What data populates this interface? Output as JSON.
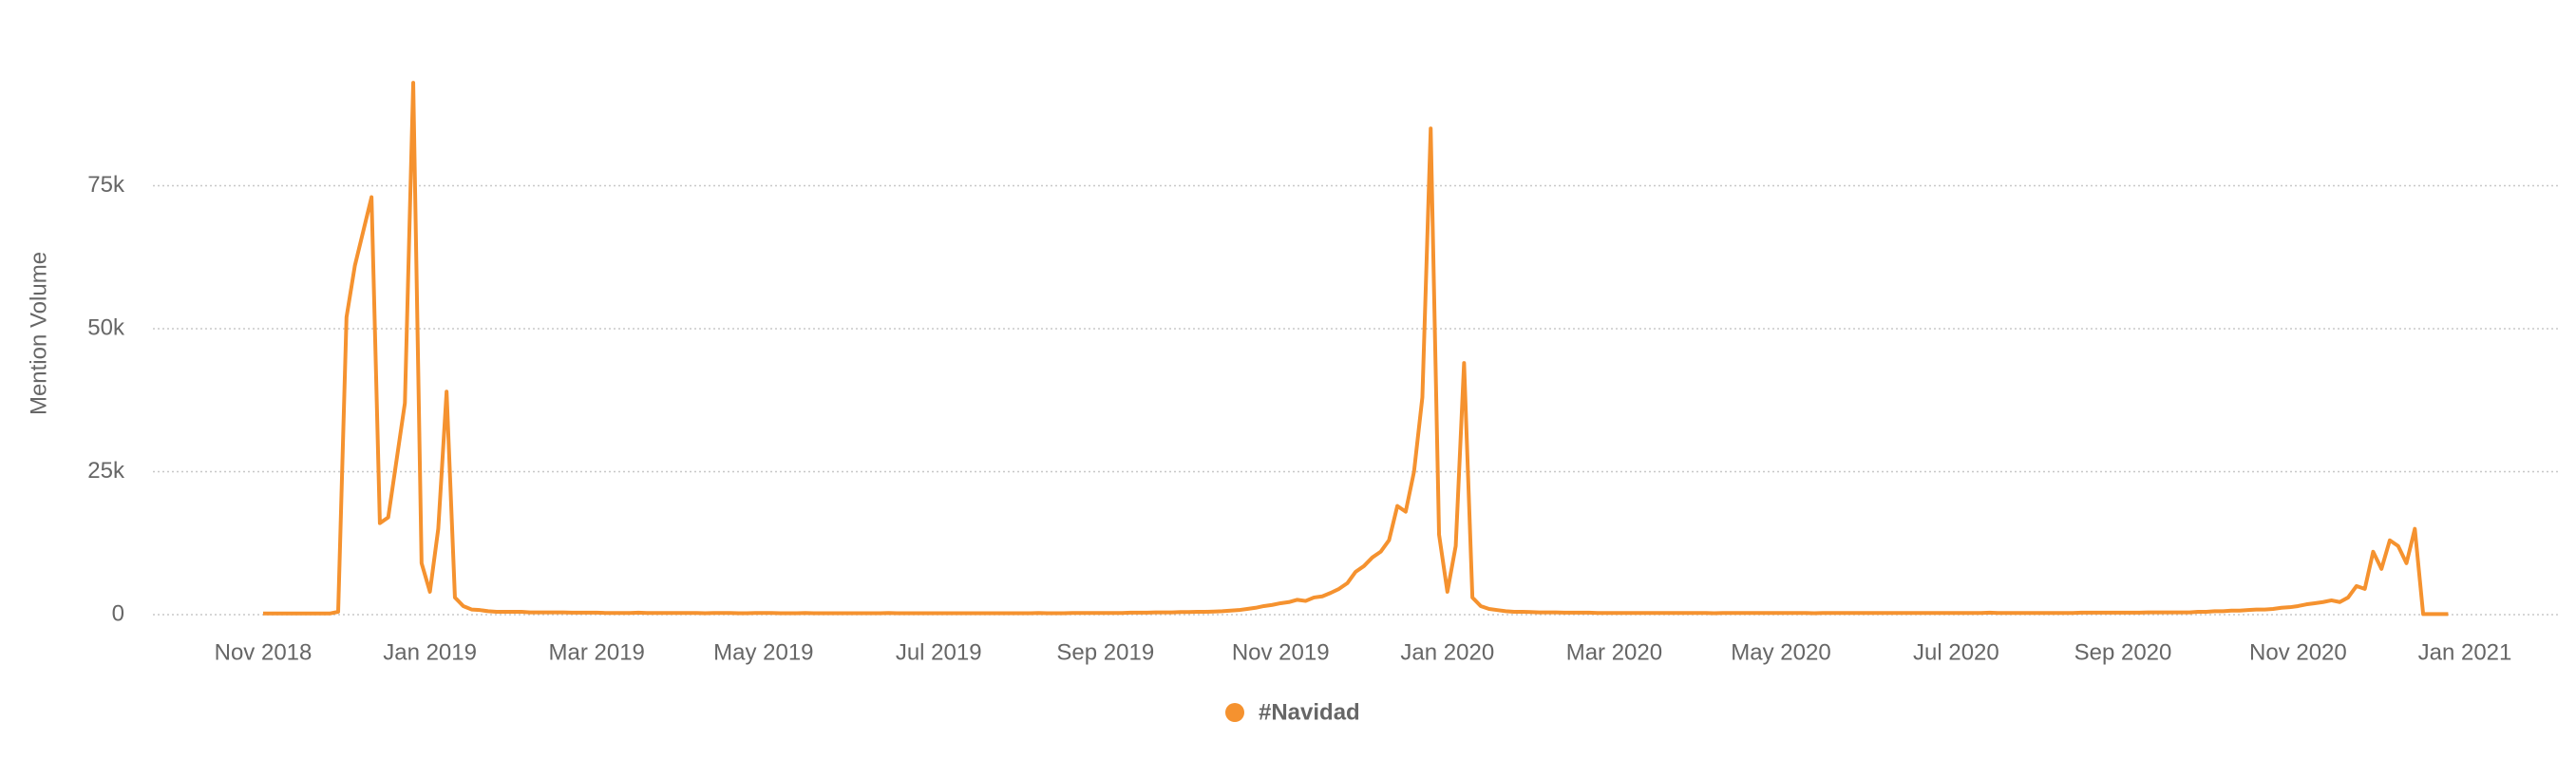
{
  "chart_data": {
    "type": "line",
    "y_label": "Mention Volume",
    "ylim": [
      0,
      95000
    ],
    "yticks": [
      0,
      {
        "value": 25000,
        "label": "25k"
      },
      {
        "value": 50000,
        "label": "50k"
      },
      {
        "value": 75000,
        "label": "75k"
      }
    ],
    "grid": true,
    "legend": "bottom",
    "categories": [
      "Nov 2018",
      null,
      null,
      null,
      null,
      null,
      null,
      null,
      null,
      null,
      null,
      null,
      null,
      null,
      null,
      null,
      null,
      null,
      null,
      null,
      "Jan 2019",
      null,
      null,
      null,
      null,
      null,
      null,
      null,
      null,
      null,
      null,
      null,
      null,
      null,
      null,
      null,
      null,
      null,
      null,
      null,
      "Mar 2019",
      null,
      null,
      null,
      null,
      null,
      null,
      null,
      null,
      null,
      null,
      null,
      null,
      null,
      null,
      null,
      null,
      null,
      null,
      null,
      "May 2019",
      null,
      null,
      null,
      null,
      null,
      null,
      null,
      null,
      null,
      null,
      null,
      null,
      null,
      null,
      null,
      null,
      null,
      null,
      null,
      null,
      "Jul 2019",
      null,
      null,
      null,
      null,
      null,
      null,
      null,
      null,
      null,
      null,
      null,
      null,
      null,
      null,
      null,
      null,
      null,
      null,
      null,
      "Sep 2019",
      null,
      null,
      null,
      null,
      null,
      null,
      null,
      null,
      null,
      null,
      null,
      null,
      null,
      null,
      null,
      null,
      null,
      null,
      null,
      null,
      "Nov 2019",
      null,
      null,
      null,
      null,
      null,
      null,
      null,
      null,
      null,
      null,
      null,
      null,
      null,
      null,
      null,
      null,
      null,
      null,
      null,
      "Jan 2020",
      null,
      null,
      null,
      null,
      null,
      null,
      null,
      null,
      null,
      null,
      null,
      null,
      null,
      null,
      null,
      null,
      null,
      null,
      null,
      "Mar 2020",
      null,
      null,
      null,
      null,
      null,
      null,
      null,
      null,
      null,
      null,
      null,
      null,
      null,
      null,
      null,
      null,
      null,
      null,
      null,
      "May 2020",
      null,
      null,
      null,
      null,
      null,
      null,
      null,
      null,
      null,
      null,
      null,
      null,
      null,
      null,
      null,
      null,
      null,
      null,
      null,
      null,
      "Jul 2020",
      null,
      null,
      null,
      null,
      null,
      null,
      null,
      null,
      null,
      null,
      null,
      null,
      null,
      null,
      null,
      null,
      null,
      null,
      null,
      "Sep 2020",
      null,
      null,
      null,
      null,
      null,
      null,
      null,
      null,
      null,
      null,
      null,
      null,
      null,
      null,
      null,
      null,
      null,
      null,
      null,
      null,
      "Nov 2020",
      null,
      null,
      null,
      null,
      null,
      null,
      null,
      null,
      null,
      null,
      null,
      null,
      null,
      null,
      null,
      null,
      null,
      null,
      null,
      "Jan 2021"
    ],
    "series": [
      {
        "name": "#Navidad",
        "color": "#f5922f",
        "values": [
          200,
          200,
          200,
          200,
          200,
          200,
          200,
          200,
          200,
          500,
          52000,
          61000,
          67000,
          73000,
          16000,
          17000,
          27000,
          37000,
          93000,
          9000,
          4000,
          15000,
          39000,
          3000,
          1500,
          900,
          800,
          600,
          500,
          500,
          500,
          500,
          400,
          400,
          400,
          400,
          400,
          350,
          350,
          350,
          350,
          300,
          300,
          300,
          300,
          350,
          300,
          300,
          300,
          300,
          300,
          300,
          300,
          250,
          300,
          300,
          300,
          250,
          250,
          300,
          300,
          300,
          250,
          250,
          250,
          300,
          250,
          250,
          250,
          250,
          250,
          250,
          250,
          250,
          250,
          300,
          250,
          250,
          250,
          250,
          250,
          250,
          250,
          250,
          250,
          250,
          250,
          250,
          250,
          250,
          250,
          250,
          250,
          300,
          250,
          250,
          250,
          300,
          300,
          300,
          300,
          300,
          300,
          300,
          350,
          350,
          350,
          400,
          400,
          400,
          450,
          450,
          500,
          500,
          550,
          600,
          700,
          800,
          1000,
          1200,
          1500,
          1700,
          2000,
          2200,
          2600,
          2400,
          3000,
          3200,
          3800,
          4500,
          5500,
          7500,
          8500,
          10000,
          11000,
          13000,
          19000,
          18000,
          25000,
          38000,
          85000,
          14000,
          4000,
          12000,
          44000,
          3000,
          1500,
          1000,
          800,
          600,
          500,
          500,
          450,
          400,
          400,
          400,
          350,
          350,
          350,
          350,
          300,
          300,
          300,
          300,
          300,
          300,
          300,
          300,
          300,
          300,
          300,
          300,
          300,
          300,
          250,
          300,
          300,
          300,
          300,
          300,
          300,
          300,
          300,
          300,
          300,
          300,
          250,
          300,
          300,
          300,
          300,
          300,
          300,
          300,
          300,
          300,
          300,
          300,
          300,
          300,
          300,
          300,
          300,
          300,
          300,
          300,
          300,
          350,
          300,
          300,
          300,
          300,
          300,
          300,
          300,
          300,
          300,
          300,
          350,
          350,
          350,
          350,
          350,
          350,
          350,
          350,
          400,
          400,
          400,
          400,
          400,
          400,
          500,
          500,
          600,
          600,
          700,
          700,
          800,
          900,
          900,
          1000,
          1200,
          1300,
          1500,
          1800,
          2000,
          2200,
          2500,
          2200,
          3000,
          5000,
          4500,
          11000,
          8000,
          13000,
          12000,
          9000,
          15000,
          100,
          100,
          100,
          100,
          null,
          null
        ]
      }
    ]
  }
}
